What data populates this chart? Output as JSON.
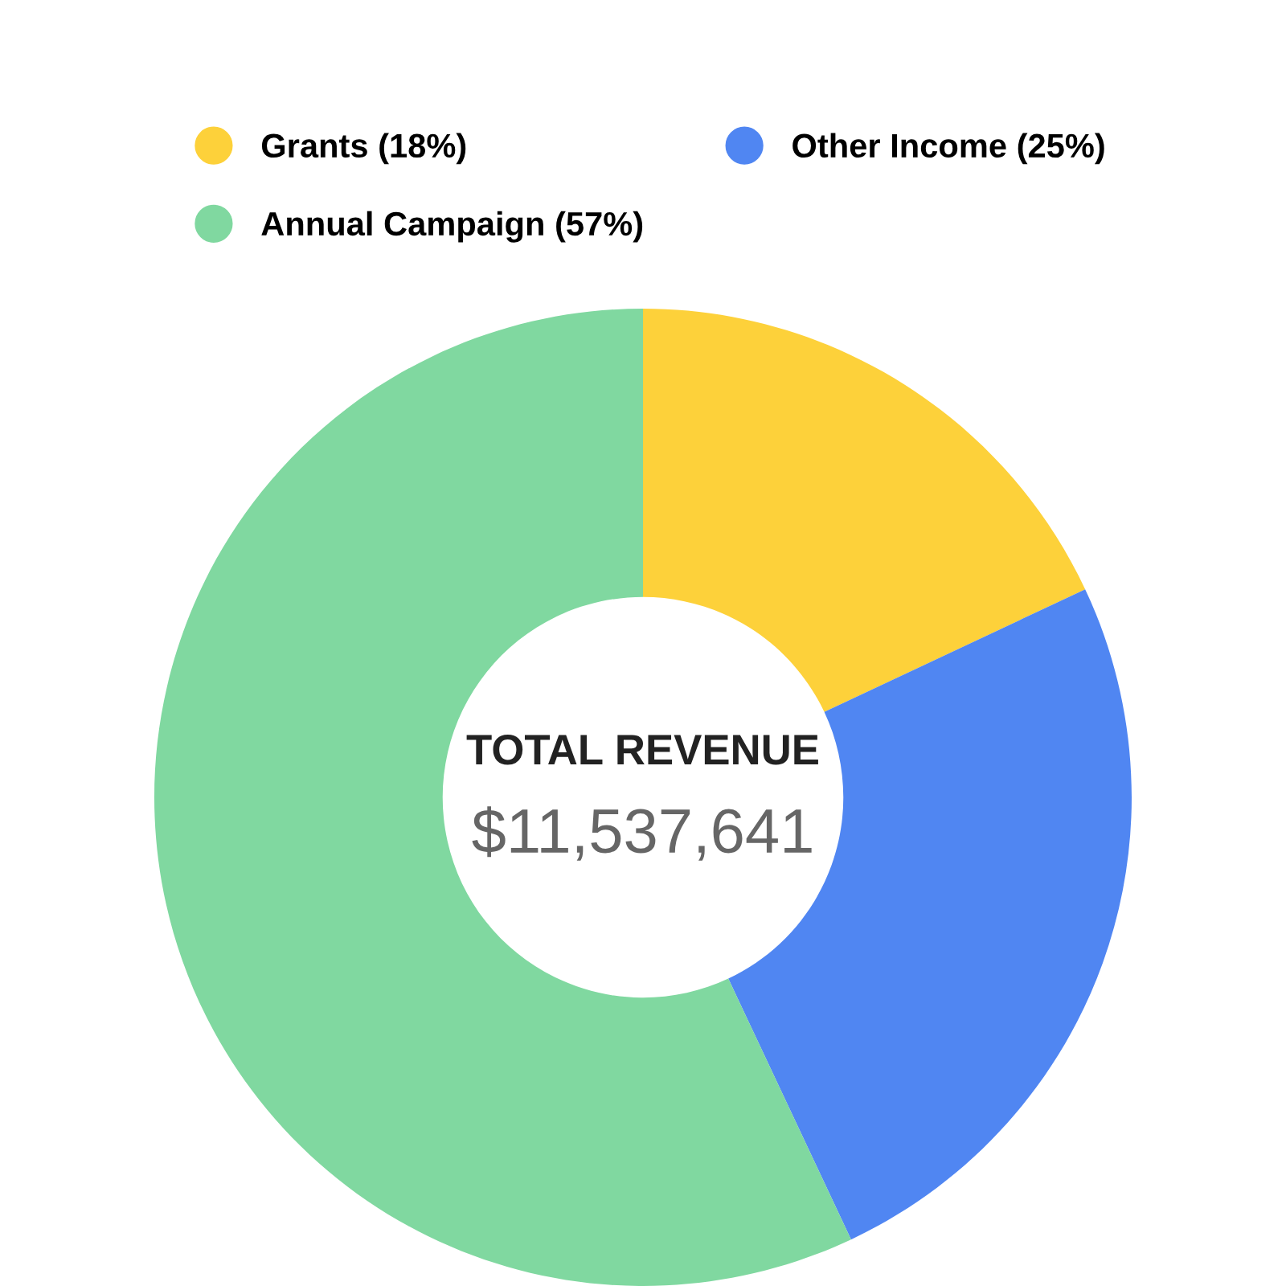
{
  "chart_data": {
    "type": "donut",
    "title": "TOTAL REVENUE",
    "subtitle": "$11,537,641",
    "categories": [
      "Grants (18%)",
      "Other Income (25%)",
      "Annual Campaign (57%)"
    ],
    "values": [
      18,
      25,
      57
    ],
    "colors": [
      "#fdd13a",
      "#5086f2",
      "#80d8a0"
    ],
    "legend": "top"
  }
}
